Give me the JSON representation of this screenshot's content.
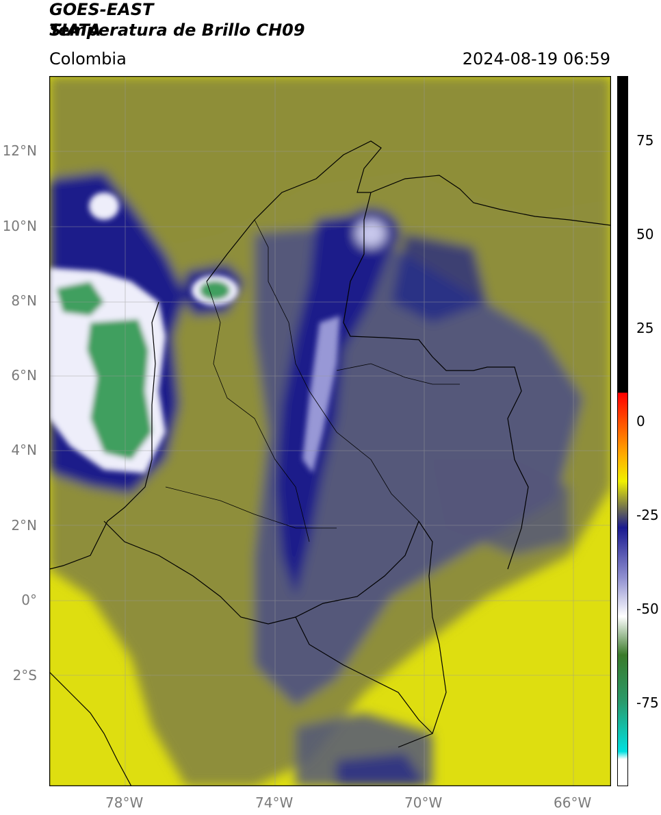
{
  "header": {
    "title_line1": "GOES-EAST",
    "title_line2": "Temperatura de Brillo CH09",
    "agency": "SIATA",
    "region": "Colombia",
    "datetime": "2024-08-19 06:59"
  },
  "map": {
    "lat_labels": [
      "12°N",
      "10°N",
      "8°N",
      "6°N",
      "4°N",
      "2°N",
      "0°",
      "2°S"
    ],
    "lon_labels": [
      "78°W",
      "74°W",
      "70°W",
      "66°W"
    ],
    "colors": {
      "yellow": "#dede10",
      "olive": "#8e8e3a",
      "gray_blue": "#54587a",
      "navy": "#1b1f8a",
      "white": "#eeeefa",
      "green": "#3f9f5f"
    }
  },
  "colorbar": {
    "labels": [
      "75",
      "50",
      "25",
      "0",
      "-25",
      "-50",
      "-75"
    ],
    "stops": [
      {
        "value": 90,
        "color": "#000000"
      },
      {
        "value": 8,
        "color": "#000000"
      },
      {
        "value": 7.9,
        "color": "#ff0000"
      },
      {
        "value": -8,
        "color": "#ffaa00"
      },
      {
        "value": -15,
        "color": "#f0f000"
      },
      {
        "value": -22,
        "color": "#707050"
      },
      {
        "value": -27,
        "color": "#1a1a90"
      },
      {
        "value": -40,
        "color": "#9090d0"
      },
      {
        "value": -50,
        "color": "#ffffff"
      },
      {
        "value": -60,
        "color": "#3a7a2a"
      },
      {
        "value": -72,
        "color": "#2a9a6a"
      },
      {
        "value": -85,
        "color": "#00e0e0"
      },
      {
        "value": -87,
        "color": "#ffffff"
      },
      {
        "value": -94,
        "color": "#ffffff"
      }
    ]
  }
}
